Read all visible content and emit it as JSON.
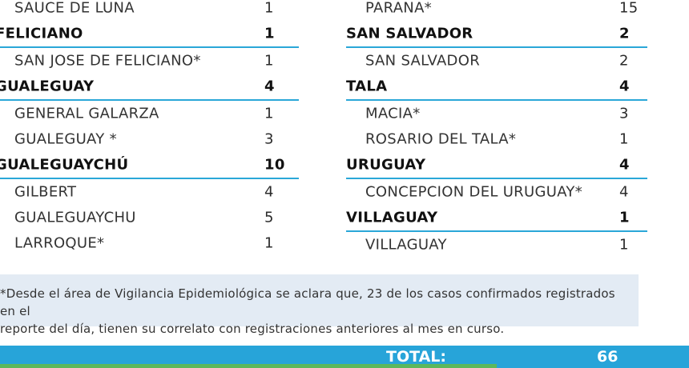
{
  "left_rows": [
    {
      "type": "loc",
      "name": "SAUCE DE LUNA",
      "count": "1"
    },
    {
      "type": "dept",
      "name": "FELICIANO",
      "count": "1"
    },
    {
      "type": "loc",
      "name": "SAN JOSE DE FELICIANO*",
      "count": "1"
    },
    {
      "type": "dept",
      "name": "GUALEGUAY",
      "count": "4"
    },
    {
      "type": "loc",
      "name": "GENERAL GALARZA",
      "count": "1"
    },
    {
      "type": "loc",
      "name": "GUALEGUAY *",
      "count": "3"
    },
    {
      "type": "dept",
      "name": "GUALEGUAYCHÚ",
      "count": "10"
    },
    {
      "type": "loc",
      "name": "GILBERT",
      "count": "4"
    },
    {
      "type": "loc",
      "name": "GUALEGUAYCHU",
      "count": "5"
    },
    {
      "type": "loc",
      "name": "LARROQUE*",
      "count": "1"
    }
  ],
  "right_rows": [
    {
      "type": "loc",
      "name": "PARANA*",
      "count": "15"
    },
    {
      "type": "dept",
      "name": "SAN SALVADOR",
      "count": "2"
    },
    {
      "type": "loc",
      "name": "SAN SALVADOR",
      "count": "2"
    },
    {
      "type": "dept",
      "name": "TALA",
      "count": "4"
    },
    {
      "type": "loc",
      "name": "MACIA*",
      "count": "3"
    },
    {
      "type": "loc",
      "name": "ROSARIO DEL TALA*",
      "count": "1"
    },
    {
      "type": "dept",
      "name": "URUGUAY",
      "count": "4"
    },
    {
      "type": "loc",
      "name": "CONCEPCION DEL URUGUAY*",
      "count": "4"
    },
    {
      "type": "dept",
      "name": "VILLAGUAY",
      "count": "1"
    },
    {
      "type": "loc",
      "name": "VILLAGUAY",
      "count": "1"
    }
  ],
  "note": {
    "line1": "*Desde el área de Vigilancia Epidemiológica se aclara que, 23 de los casos confirmados registrados en el",
    "line2": "reporte del día, tienen su correlato con registraciones anteriores al mes en curso."
  },
  "total": {
    "label": "TOTAL:",
    "value": "66"
  },
  "colors": {
    "divider": "#2aa7d8",
    "note_bg": "#e3ebf4",
    "total_bar": "#27a4d9",
    "green_strip": "#5cb85c"
  }
}
